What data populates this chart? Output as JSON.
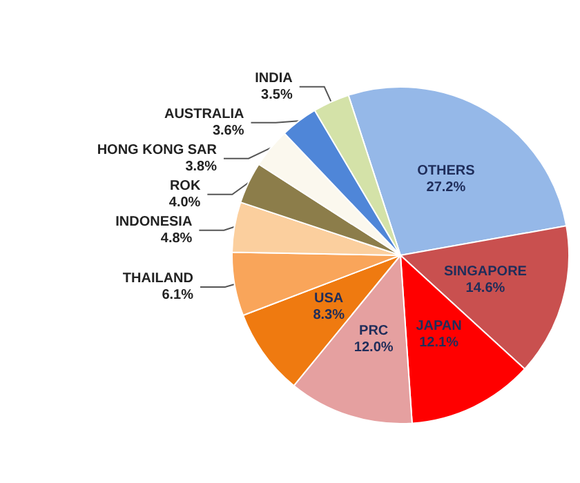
{
  "chart_data": {
    "type": "pie",
    "categories": [
      "OTHERS",
      "SINGAPORE",
      "JAPAN",
      "PRC",
      "USA",
      "THAILAND",
      "INDONESIA",
      "ROK",
      "HONG KONG SAR",
      "AUSTRALIA",
      "INDIA"
    ],
    "values": [
      27.2,
      14.6,
      12.1,
      12.0,
      8.3,
      6.1,
      4.8,
      4.0,
      3.8,
      3.6,
      3.5
    ],
    "value_labels": [
      "27.2%",
      "14.6%",
      "12.1%",
      "12.0%",
      "8.3%",
      "6.1%",
      "4.8%",
      "4.0%",
      "3.8%",
      "3.6%",
      "3.5%"
    ],
    "colors": [
      "#95b8e8",
      "#c9504f",
      "#ff0000",
      "#e5a0a0",
      "#ef7a10",
      "#f9a55a",
      "#fbcf9e",
      "#8c7d4a",
      "#fbf8ee",
      "#4f86d8",
      "#d4e2a8"
    ]
  }
}
